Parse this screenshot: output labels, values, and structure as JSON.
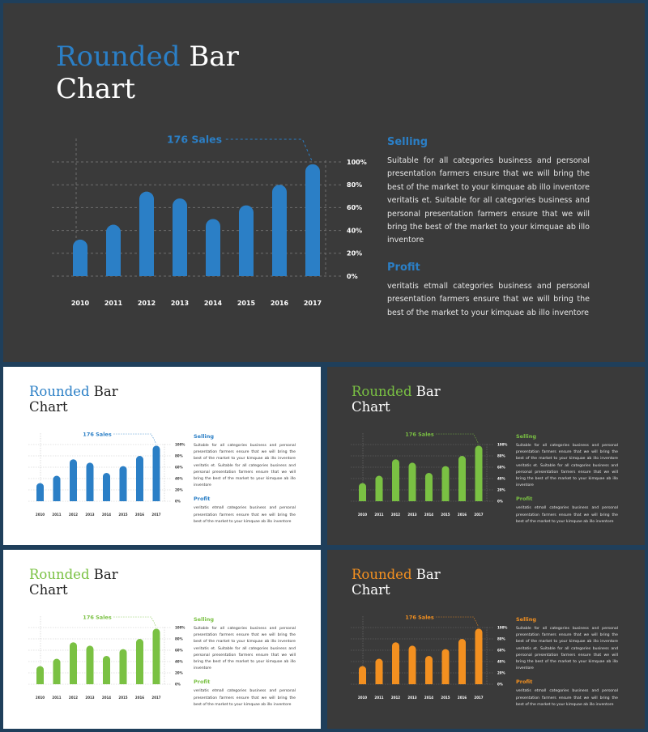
{
  "slides": [
    {
      "theme": "dark",
      "accent": "#2b7fc6",
      "title_accent": "Rounded",
      "title_rest1": " Bar",
      "title_line2": "Chart",
      "callout": "176 Sales",
      "selling_heading": "Selling",
      "selling_body": "Suitable for all categories business and personal presentation farmers ensure that we will bring the best of the market to your kimquae ab illo inventore veritatis et. Suitable for all categories business and personal presentation farmers ensure that we will bring the best of the market to your kimquae ab illo inventore",
      "profit_heading": "Profit",
      "profit_body": "veritatis etmall categories business and personal presentation farmers ensure that we will bring the best of the market to your kimquae ab illo inventore"
    },
    {
      "theme": "light",
      "accent": "#2b7fc6",
      "title_accent": "Rounded",
      "title_rest1": " Bar",
      "title_line2": "Chart",
      "callout": "176 Sales",
      "selling_heading": "Selling",
      "selling_body": "Suitable for all categories business and personal presentation farmers ensure that we will bring the best of the market to your kimquae ab illo inventore veritatis et. Suitable for all categories business and personal presentation farmers ensure that we will bring the best of the market to your kimquae ab illo inventore",
      "profit_heading": "Profit",
      "profit_body": "veritatis etmall categories business and personal presentation farmers ensure that we will bring the best of the market to your kimquae ab illo inventore"
    },
    {
      "theme": "dark",
      "accent": "#7ac143",
      "title_accent": "Rounded",
      "title_rest1": " Bar",
      "title_line2": "Chart",
      "callout": "176 Sales",
      "selling_heading": "Selling",
      "selling_body": "Suitable for all categories business and personal presentation farmers ensure that we will bring the best of the market to your kimquae ab illo inventore veritatis et. Suitable for all categories business and personal presentation farmers ensure that we will bring the best of the market to your kimquae ab illo inventore",
      "profit_heading": "Profit",
      "profit_body": "veritatis etmall categories business and personal presentation farmers ensure that we will bring the best of the market to your kimquae ab illo inventore"
    },
    {
      "theme": "light",
      "accent": "#7ac143",
      "title_accent": "Rounded",
      "title_rest1": " Bar",
      "title_line2": "Chart",
      "callout": "176 Sales",
      "selling_heading": "Selling",
      "selling_body": "Suitable for all categories business and personal presentation farmers ensure that we will bring the best of the market to your kimquae ab illo inventore veritatis et. Suitable for all categories business and personal presentation farmers ensure that we will bring the best of the market to your kimquae ab illo inventore",
      "profit_heading": "Profit",
      "profit_body": "veritatis etmall categories business and personal presentation farmers ensure that we will bring the best of the market to your kimquae ab illo inventore"
    },
    {
      "theme": "dark",
      "accent": "#f39020",
      "title_accent": "Rounded",
      "title_rest1": " Bar",
      "title_line2": "Chart",
      "callout": "176 Sales",
      "selling_heading": "Selling",
      "selling_body": "Suitable for all categories business and personal presentation farmers ensure that we will bring the best of the market to your kimquae ab illo inventore veritatis et. Suitable for all categories business and personal presentation farmers ensure that we will bring the best of the market to your kimquae ab illo inventore",
      "profit_heading": "Profit",
      "profit_body": "veritatis etmall categories business and personal presentation farmers ensure that we will bring the best of the market to your kimquae ab illo inventore"
    }
  ],
  "chart_data": [
    {
      "type": "bar",
      "title": "",
      "xlabel": "",
      "ylabel": "",
      "categories": [
        "2010",
        "2011",
        "2012",
        "2013",
        "2014",
        "2015",
        "2016",
        "2017"
      ],
      "values": [
        32,
        45,
        74,
        68,
        50,
        62,
        80,
        98
      ],
      "y_ticks": [
        "0%",
        "20%",
        "40%",
        "60%",
        "80%",
        "100%"
      ],
      "ylim": [
        0,
        100
      ],
      "grid": true,
      "annotation": "176 Sales"
    },
    {
      "type": "bar",
      "title": "",
      "xlabel": "",
      "ylabel": "",
      "categories": [
        "2010",
        "2011",
        "2012",
        "2013",
        "2014",
        "2015",
        "2016",
        "2017"
      ],
      "values": [
        32,
        45,
        74,
        68,
        50,
        62,
        80,
        98
      ],
      "y_ticks": [
        "0%",
        "20%",
        "40%",
        "60%",
        "80%",
        "100%"
      ],
      "ylim": [
        0,
        100
      ],
      "grid": true,
      "annotation": "176 Sales"
    },
    {
      "type": "bar",
      "title": "",
      "xlabel": "",
      "ylabel": "",
      "categories": [
        "2010",
        "2011",
        "2012",
        "2013",
        "2014",
        "2015",
        "2016",
        "2017"
      ],
      "values": [
        32,
        45,
        74,
        68,
        50,
        62,
        80,
        98
      ],
      "y_ticks": [
        "0%",
        "20%",
        "40%",
        "60%",
        "80%",
        "100%"
      ],
      "ylim": [
        0,
        100
      ],
      "grid": true,
      "annotation": "176 Sales"
    },
    {
      "type": "bar",
      "title": "",
      "xlabel": "",
      "ylabel": "",
      "categories": [
        "2010",
        "2011",
        "2012",
        "2013",
        "2014",
        "2015",
        "2016",
        "2017"
      ],
      "values": [
        32,
        45,
        74,
        68,
        50,
        62,
        80,
        98
      ],
      "y_ticks": [
        "0%",
        "20%",
        "40%",
        "60%",
        "80%",
        "100%"
      ],
      "ylim": [
        0,
        100
      ],
      "grid": true,
      "annotation": "176 Sales"
    },
    {
      "type": "bar",
      "title": "",
      "xlabel": "",
      "ylabel": "",
      "categories": [
        "2010",
        "2011",
        "2012",
        "2013",
        "2014",
        "2015",
        "2016",
        "2017"
      ],
      "values": [
        32,
        45,
        74,
        68,
        50,
        62,
        80,
        98
      ],
      "y_ticks": [
        "0%",
        "20%",
        "40%",
        "60%",
        "80%",
        "100%"
      ],
      "ylim": [
        0,
        100
      ],
      "grid": true,
      "annotation": "176 Sales"
    }
  ]
}
